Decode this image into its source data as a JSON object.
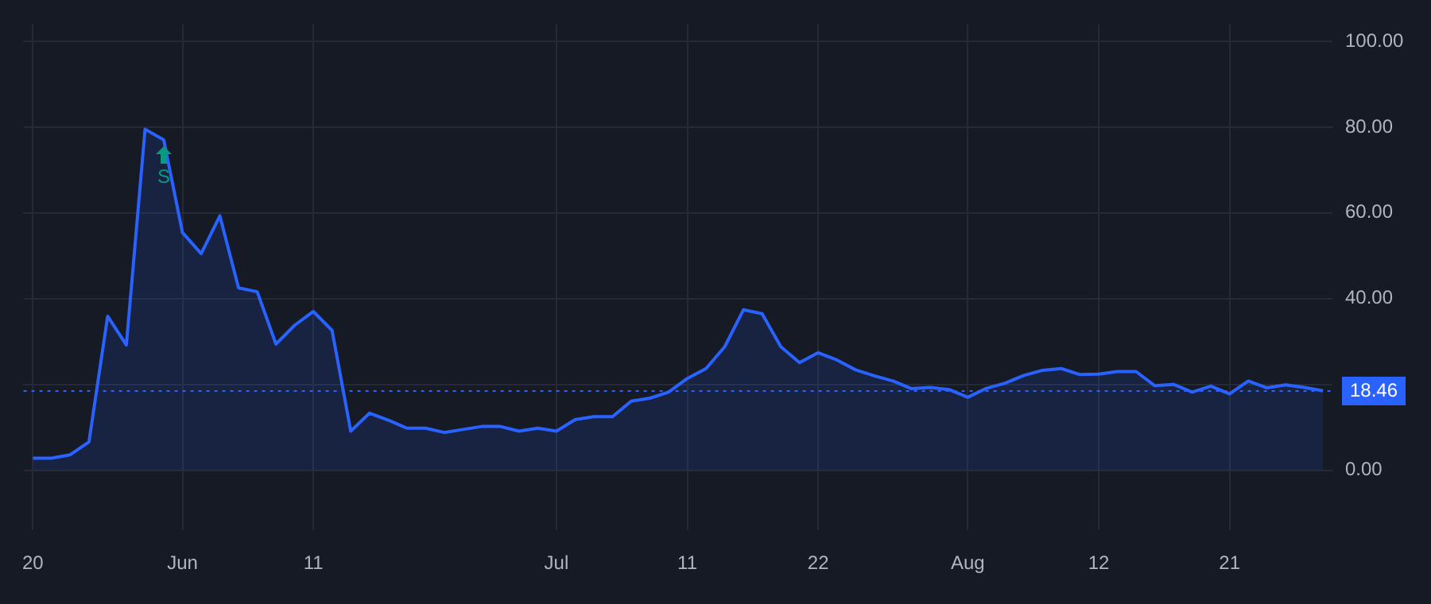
{
  "chart_data": {
    "type": "area",
    "categories": [
      "20",
      null,
      null,
      null,
      null,
      null,
      null,
      null,
      "Jun",
      null,
      null,
      null,
      null,
      null,
      null,
      "11",
      null,
      null,
      null,
      null,
      null,
      null,
      null,
      null,
      null,
      null,
      null,
      null,
      "Jul",
      null,
      null,
      null,
      null,
      null,
      null,
      "11",
      null,
      null,
      null,
      null,
      null,
      null,
      "22",
      null,
      null,
      null,
      null,
      null,
      null,
      null,
      "Aug",
      null,
      null,
      null,
      null,
      null,
      null,
      "12",
      null,
      null,
      null,
      null,
      null,
      null,
      "21",
      null,
      null,
      null,
      null,
      null
    ],
    "series": [
      {
        "color": "#2962ff",
        "values": [
          2.8,
          2.8,
          3.6,
          6.6,
          35.9,
          29.2,
          79.5,
          77.0,
          55.4,
          50.5,
          59.3,
          42.5,
          41.6,
          29.4,
          33.8,
          37.0,
          32.6,
          9.1,
          13.3,
          11.7,
          9.8,
          9.8,
          8.8,
          9.5,
          10.2,
          10.2,
          9.1,
          9.8,
          9.1,
          11.8,
          12.5,
          12.5,
          16.1,
          16.8,
          18.2,
          21.4,
          23.7,
          28.8,
          37.4,
          36.5,
          28.8,
          25.1,
          27.4,
          25.7,
          23.4,
          22.0,
          20.8,
          19.0,
          19.3,
          18.8,
          17.0,
          19.1,
          20.3,
          22.1,
          23.3,
          23.7,
          22.3,
          22.4,
          23.0,
          23.0,
          19.7,
          20.0,
          18.2,
          19.6,
          17.8,
          20.8,
          19.2,
          19.9,
          19.3,
          18.5
        ]
      }
    ],
    "ylim": [
      -14,
      104
    ],
    "yticks": [
      {
        "value": 0,
        "label": "0.00"
      },
      {
        "value": 20,
        "label": null
      },
      {
        "value": 40,
        "label": "40.00"
      },
      {
        "value": 60,
        "label": "60.00"
      },
      {
        "value": 80,
        "label": "80.00"
      },
      {
        "value": 100,
        "label": "100.00"
      }
    ],
    "grid": true,
    "legend": false,
    "marker": "none",
    "line_style": "solid",
    "ref_lines": [
      {
        "axis": "y",
        "value": 18.46,
        "label": "18.46",
        "color": "#2962ff",
        "line_style": "dotted"
      }
    ],
    "annotations": [
      "S"
    ]
  }
}
